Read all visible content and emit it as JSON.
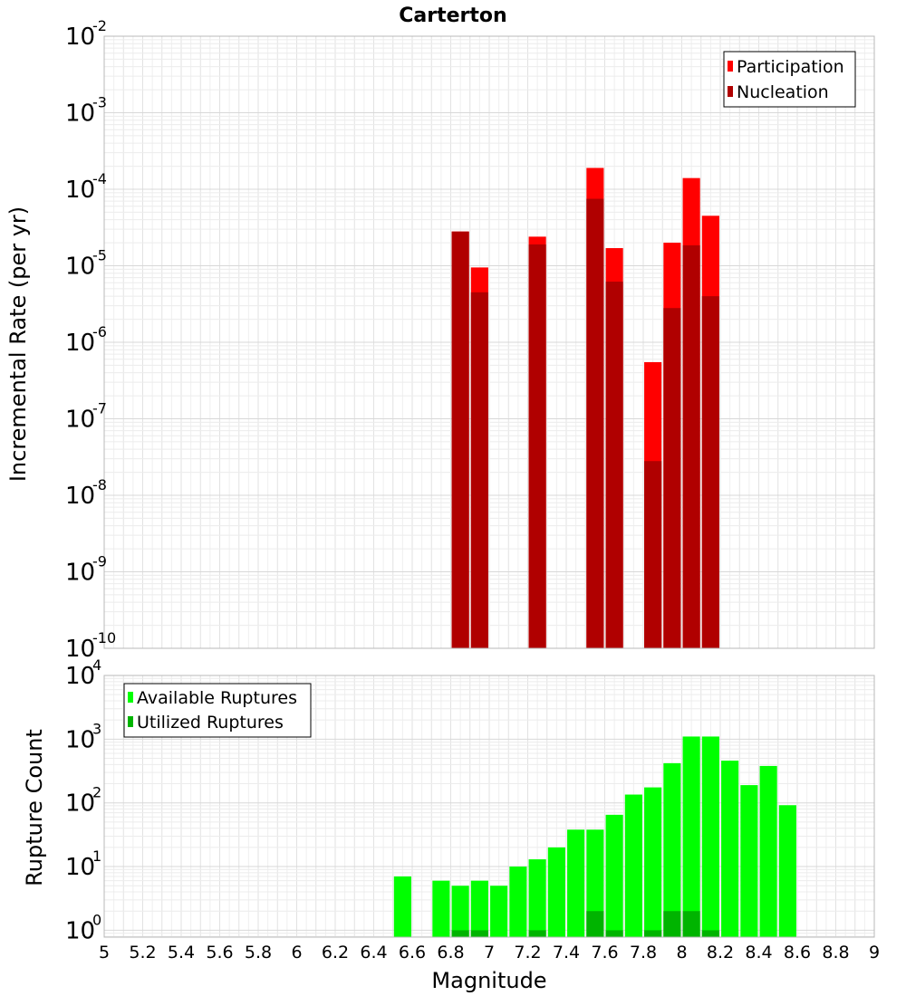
{
  "title": "Carterton",
  "xlabel": "Magnitude",
  "chart_data": [
    {
      "type": "bar",
      "title": "Carterton",
      "xlabel": "Magnitude",
      "ylabel": "Incremental Rate (per yr)",
      "yscale": "log",
      "xlim": [
        5,
        9
      ],
      "ylim": [
        1e-10,
        0.01
      ],
      "grid": true,
      "legend_position": "top-right",
      "y_ticks": [
        {
          "base": "10",
          "exp": "-10"
        },
        {
          "base": "10",
          "exp": "-9"
        },
        {
          "base": "10",
          "exp": "-8"
        },
        {
          "base": "10",
          "exp": "-7"
        },
        {
          "base": "10",
          "exp": "-6"
        },
        {
          "base": "10",
          "exp": "-5"
        },
        {
          "base": "10",
          "exp": "-4"
        },
        {
          "base": "10",
          "exp": "-3"
        },
        {
          "base": "10",
          "exp": "-2"
        }
      ],
      "series": [
        {
          "name": "Participation",
          "color": "#ff0000",
          "x": [
            6.85,
            6.95,
            7.25,
            7.55,
            7.65,
            7.85,
            7.95,
            8.05,
            8.15
          ],
          "values": [
            2.8e-05,
            9.5e-06,
            2.4e-05,
            0.00019,
            1.7e-05,
            5.5e-07,
            2e-05,
            0.00014,
            4.5e-05
          ]
        },
        {
          "name": "Nucleation",
          "color": "#b00000",
          "x": [
            6.85,
            6.95,
            7.25,
            7.55,
            7.65,
            7.85,
            7.95,
            8.05,
            8.15
          ],
          "values": [
            2.8e-05,
            4.5e-06,
            1.9e-05,
            7.5e-05,
            6.2e-06,
            2.8e-08,
            2.8e-06,
            1.85e-05,
            4e-06
          ]
        }
      ]
    },
    {
      "type": "bar",
      "xlabel": "Magnitude",
      "ylabel": "Rupture Count",
      "yscale": "log",
      "xlim": [
        5,
        9
      ],
      "ylim": [
        0.78,
        10000
      ],
      "grid": true,
      "legend_position": "top-left",
      "x_ticks": [
        "5",
        "5.2",
        "5.4",
        "5.6",
        "5.8",
        "6",
        "6.2",
        "6.4",
        "6.6",
        "6.8",
        "7",
        "7.2",
        "7.4",
        "7.6",
        "7.8",
        "8",
        "8.2",
        "8.4",
        "8.6",
        "8.8",
        "9"
      ],
      "y_ticks": [
        {
          "base": "10",
          "exp": "0"
        },
        {
          "base": "10",
          "exp": "1"
        },
        {
          "base": "10",
          "exp": "2"
        },
        {
          "base": "10",
          "exp": "3"
        },
        {
          "base": "10",
          "exp": "4"
        }
      ],
      "series": [
        {
          "name": "Available Ruptures",
          "color": "#00ff00",
          "x": [
            6.55,
            6.75,
            6.85,
            6.95,
            7.05,
            7.15,
            7.25,
            7.35,
            7.45,
            7.55,
            7.65,
            7.75,
            7.85,
            7.95,
            8.05,
            8.15,
            8.25,
            8.35,
            8.45,
            8.55
          ],
          "values": [
            7,
            6,
            5,
            6,
            5,
            10,
            13,
            20,
            38,
            38,
            65,
            135,
            175,
            420,
            1100,
            1100,
            460,
            190,
            380,
            92
          ]
        },
        {
          "name": "Utilized Ruptures",
          "color": "#00b400",
          "x": [
            6.85,
            6.95,
            7.25,
            7.55,
            7.65,
            7.85,
            7.95,
            8.05,
            8.15
          ],
          "values": [
            1,
            1,
            1,
            2,
            1,
            1,
            2,
            2,
            1
          ]
        }
      ]
    }
  ]
}
